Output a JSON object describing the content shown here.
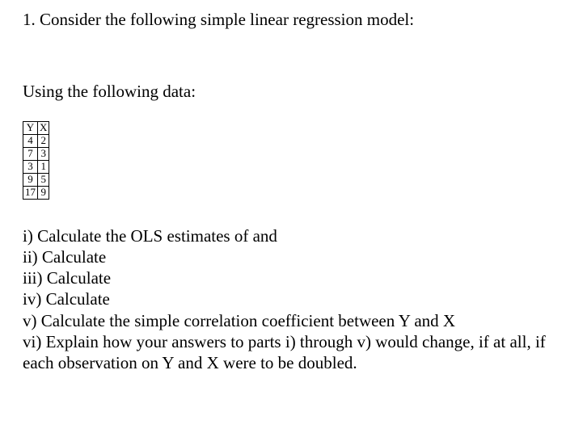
{
  "intro": "1. Consider the following simple linear regression model:",
  "dataIntro": "Using the following data:",
  "table": {
    "headers": [
      "Y",
      "X"
    ],
    "rows": [
      [
        "4",
        "2"
      ],
      [
        "7",
        "3"
      ],
      [
        "3",
        "1"
      ],
      [
        "9",
        "5"
      ],
      [
        "17",
        "9"
      ]
    ]
  },
  "questions": {
    "i": "i) Calculate the OLS estimates of and",
    "ii": "ii) Calculate",
    "iii": "iii) Calculate",
    "iv": "iv) Calculate",
    "v": "v) Calculate the simple correlation coefficient between Y and X",
    "vi": "vi) Explain how your answers to parts i) through v) would change, if at all, if each observation on Y and X were to be doubled."
  }
}
